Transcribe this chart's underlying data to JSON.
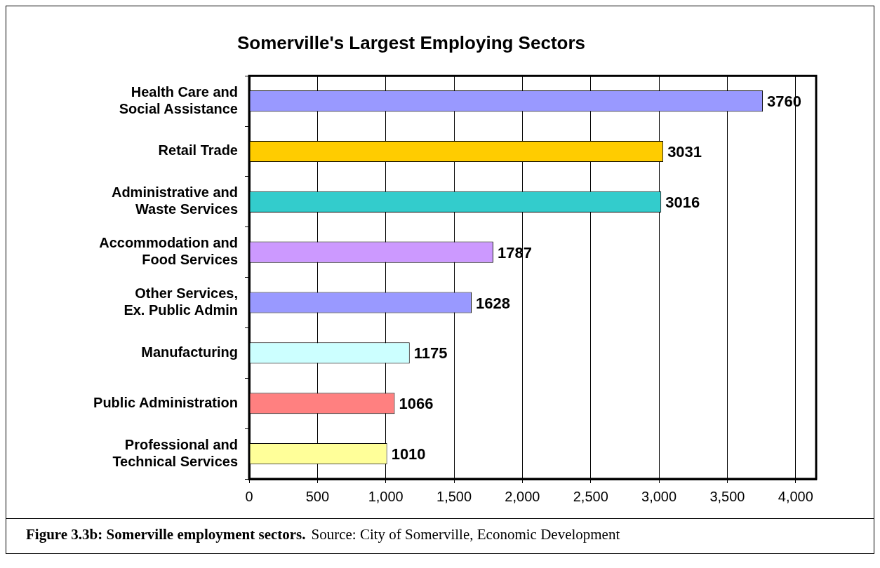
{
  "chart_data": {
    "type": "bar",
    "orientation": "horizontal",
    "title": "Somerville's Largest Employing Sectors",
    "categories": [
      "Health Care and Social Assistance",
      "Retail Trade",
      "Administrative and Waste Services",
      "Accommodation and Food Services",
      "Other Services, Ex. Public Admin",
      "Manufacturing",
      "Public Administration",
      "Professional and Technical Services"
    ],
    "values": [
      3760,
      3031,
      3016,
      1787,
      1628,
      1175,
      1066,
      1010
    ],
    "colors": [
      "#9999ff",
      "#ffcc00",
      "#33cccc",
      "#cc99ff",
      "#9999ff",
      "#ccffff",
      "#ff8080",
      "#ffff99"
    ],
    "xlim": [
      0,
      4150
    ],
    "xticks": [
      0,
      {
        "value": 500,
        "label": "500"
      },
      {
        "value": 1000,
        "label": "1,000"
      },
      {
        "value": 1500,
        "label": "1,500"
      },
      {
        "value": 2000,
        "label": "2,000"
      },
      {
        "value": 2500,
        "label": "2,500"
      },
      {
        "value": 3000,
        "label": "3,000"
      },
      {
        "value": 3500,
        "label": "3,500"
      },
      {
        "value": 4000,
        "label": "4,000"
      }
    ],
    "grid": "x",
    "legend": false,
    "data_labels": true,
    "annotations": [
      "Figure 3.3b:  Somerville employment sectors.",
      "Source: City of Somerville, Economic Development"
    ]
  }
}
